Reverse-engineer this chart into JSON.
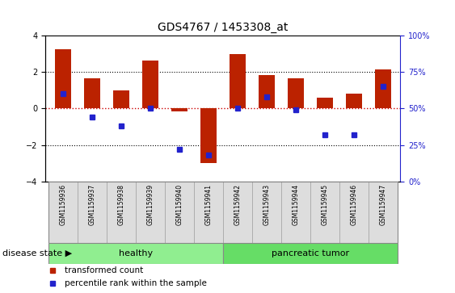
{
  "title": "GDS4767 / 1453308_at",
  "samples": [
    "GSM1159936",
    "GSM1159937",
    "GSM1159938",
    "GSM1159939",
    "GSM1159940",
    "GSM1159941",
    "GSM1159942",
    "GSM1159943",
    "GSM1159944",
    "GSM1159945",
    "GSM1159946",
    "GSM1159947"
  ],
  "transformed_count": [
    3.25,
    1.65,
    1.0,
    2.6,
    -0.15,
    -3.0,
    2.95,
    1.8,
    1.65,
    0.6,
    0.8,
    2.15
  ],
  "percentile_rank": [
    60,
    44,
    38,
    50,
    22,
    18,
    50,
    58,
    49,
    32,
    32,
    65
  ],
  "bar_color": "#bb2200",
  "dot_color": "#2222cc",
  "ylim_left": [
    -4,
    4
  ],
  "ylim_right": [
    0,
    100
  ],
  "yticks_left": [
    -4,
    -2,
    0,
    2,
    4
  ],
  "yticks_right": [
    0,
    25,
    50,
    75,
    100
  ],
  "hline_color": "#cc0000",
  "hline_style": "dotted",
  "dotline_color": "black",
  "dotline_style": "dotted",
  "groups": [
    {
      "label": "healthy",
      "start": 0,
      "end": 6,
      "color": "#90ee90"
    },
    {
      "label": "pancreatic tumor",
      "start": 6,
      "end": 12,
      "color": "#66dd66"
    }
  ],
  "disease_state_label": "disease state",
  "legend_items": [
    {
      "color": "#bb2200",
      "label": "transformed count"
    },
    {
      "color": "#2222cc",
      "label": "percentile rank within the sample"
    }
  ],
  "bg_color": "#dddddd",
  "plot_bg": "#ffffff",
  "bar_width": 0.55,
  "title_fontsize": 10,
  "label_fontsize": 7,
  "tick_fontsize": 7,
  "group_fontsize": 8,
  "legend_fontsize": 7.5
}
